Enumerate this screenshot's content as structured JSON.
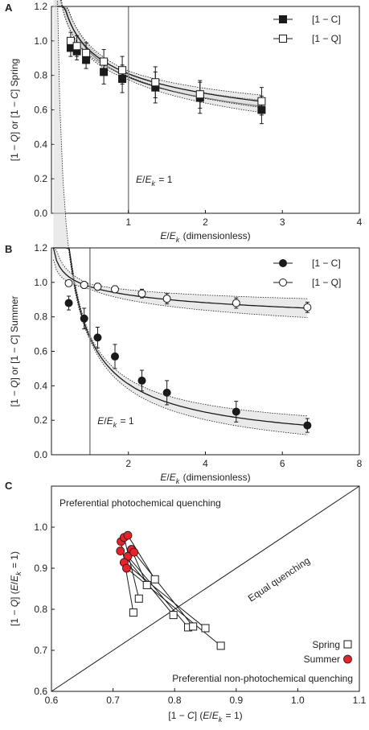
{
  "chart_data": [
    {
      "panel": "A",
      "type": "scatter",
      "xlim": [
        0,
        4
      ],
      "ylim": [
        0,
        1.2
      ],
      "x_ticks": [
        "1",
        "2",
        "3",
        "4"
      ],
      "y_ticks": [
        "0.0",
        "0.2",
        "0.4",
        "0.6",
        "0.8",
        "1.0",
        "1.2"
      ],
      "ylabel": "[1 − Q] or [1 − C] Spring",
      "xlabel": "E/Ek (dimensionless)",
      "annotation": "E/Ek = 1",
      "vline_x": 1,
      "legend_position": "top-right",
      "series": [
        {
          "name": "[1 − C]",
          "marker": "square-filled",
          "x": [
            0.25,
            0.33,
            0.45,
            0.68,
            0.92,
            1.35,
            1.93,
            2.73
          ],
          "y": [
            0.96,
            0.94,
            0.89,
            0.82,
            0.78,
            0.73,
            0.67,
            0.6
          ],
          "err": [
            0.05,
            0.05,
            0.05,
            0.07,
            0.08,
            0.09,
            0.09,
            0.08
          ]
        },
        {
          "name": "[1 − Q]",
          "marker": "square-open",
          "x": [
            0.25,
            0.33,
            0.45,
            0.68,
            0.92,
            1.35,
            1.93,
            2.73
          ],
          "y": [
            1.0,
            0.97,
            0.93,
            0.88,
            0.83,
            0.76,
            0.69,
            0.65
          ],
          "err": [
            0.05,
            0.06,
            0.06,
            0.07,
            0.08,
            0.09,
            0.08,
            0.08
          ]
        }
      ],
      "fits": {
        "C": {
          "a": 0.79,
          "b": -0.24
        },
        "Q": {
          "a": 0.81,
          "b": -0.22
        }
      }
    },
    {
      "panel": "B",
      "type": "scatter",
      "xlim": [
        0,
        8
      ],
      "ylim": [
        0,
        1.2
      ],
      "x_ticks": [
        "2",
        "4",
        "6",
        "8"
      ],
      "y_ticks": [
        "0.0",
        "0.2",
        "0.4",
        "0.6",
        "0.8",
        "1.0",
        "1.2"
      ],
      "ylabel": "[1 − Q] or [1 − C] Summer",
      "xlabel": "E/Ek (dimensionless)",
      "annotation": "E/Ek = 1",
      "vline_x": 1,
      "legend_position": "top-right",
      "series": [
        {
          "name": "[1 − C]",
          "marker": "circle-filled",
          "x": [
            0.45,
            0.85,
            1.2,
            1.65,
            2.35,
            3.0,
            4.8,
            6.65
          ],
          "y": [
            0.88,
            0.79,
            0.68,
            0.57,
            0.43,
            0.36,
            0.25,
            0.17
          ],
          "err": [
            0.04,
            0.06,
            0.06,
            0.07,
            0.06,
            0.07,
            0.06,
            0.04
          ]
        },
        {
          "name": "[1 − Q]",
          "marker": "circle-open",
          "x": [
            0.45,
            0.85,
            1.2,
            1.65,
            2.35,
            3.0,
            4.8,
            6.65
          ],
          "y": [
            0.995,
            0.985,
            0.975,
            0.96,
            0.935,
            0.905,
            0.88,
            0.855
          ],
          "err": [
            0.015,
            0.02,
            0.02,
            0.02,
            0.025,
            0.03,
            0.03,
            0.03
          ]
        }
      ],
      "fits": {
        "C": {
          "a": 0.68,
          "b": -0.73
        },
        "Q": {
          "a": 0.975,
          "b": -0.072
        }
      }
    },
    {
      "panel": "C",
      "type": "scatter",
      "xlim": [
        0.6,
        1.1
      ],
      "ylim": [
        0.6,
        1.1
      ],
      "x_ticks": [
        "0.6",
        "0.7",
        "0.8",
        "0.9",
        "1.0",
        "1.1"
      ],
      "y_ticks": [
        "0.7",
        "0.8",
        "0.9",
        "1.0"
      ],
      "xlabel": "[1 − C] (E/Ek = 1)",
      "ylabel": "[1 − Q] (E/Ek = 1)",
      "region_top": "Preferential photochemical quenching",
      "region_bottom": "Preferential non-photochemical quenching",
      "diagonal_label": "Equal quenching",
      "legend_position": "bottom-right",
      "legend": [
        "Spring",
        "Summer"
      ],
      "spring": {
        "x": [
          0.733,
          0.742,
          0.768,
          0.755,
          0.798,
          0.822,
          0.83,
          0.85,
          0.875
        ],
        "y": [
          0.792,
          0.826,
          0.873,
          0.859,
          0.786,
          0.756,
          0.758,
          0.754,
          0.711
        ]
      },
      "summer": {
        "x": [
          0.713,
          0.718,
          0.724,
          0.73,
          0.712,
          0.724,
          0.734,
          0.718,
          0.722
        ],
        "y": [
          0.965,
          0.975,
          0.98,
          0.946,
          0.942,
          0.929,
          0.939,
          0.914,
          0.9
        ]
      },
      "links": [
        [
          0,
          0
        ],
        [
          1,
          1
        ],
        [
          2,
          2
        ],
        [
          3,
          3
        ],
        [
          4,
          4
        ],
        [
          5,
          5
        ],
        [
          6,
          6
        ],
        [
          7,
          7
        ],
        [
          8,
          8
        ]
      ]
    }
  ],
  "colors": {
    "summer_fill": "#e8212a",
    "band_fill": "#d9d9d9",
    "vline": "#8c8c8c",
    "ink": "#1a1a1a"
  }
}
